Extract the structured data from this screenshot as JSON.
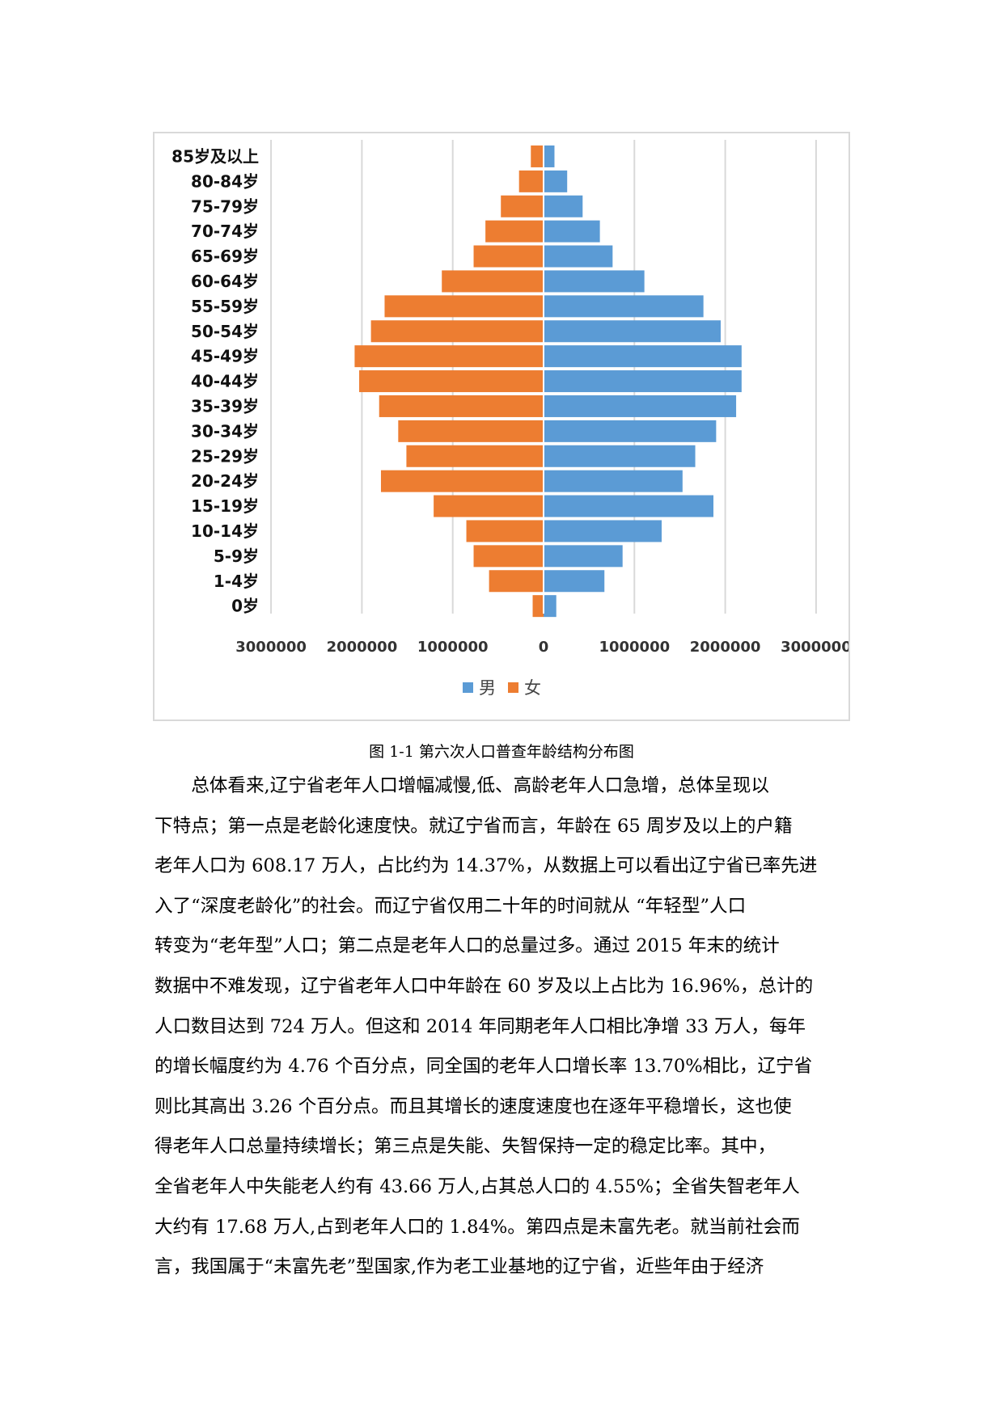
{
  "chart_data": {
    "type": "bar",
    "orientation": "horizontal",
    "title": "",
    "categories": [
      "85岁及以上",
      "80-84岁",
      "75-79岁",
      "70-74岁",
      "65-69岁",
      "60-64岁",
      "55-59岁",
      "50-54岁",
      "45-49岁",
      "40-44岁",
      "35-39岁",
      "30-34岁",
      "25-29岁",
      "20-24岁",
      "15-19岁",
      "10-14岁",
      "5-9岁",
      "1-4岁",
      "0岁"
    ],
    "series": [
      {
        "name": "男",
        "color": "#5b9bd5",
        "values": [
          120000,
          260000,
          430000,
          620000,
          760000,
          1110000,
          1760000,
          1950000,
          2180000,
          2180000,
          2120000,
          1900000,
          1670000,
          1530000,
          1870000,
          1300000,
          870000,
          670000,
          140000
        ]
      },
      {
        "name": "女",
        "color": "#ed7d31",
        "values": [
          140000,
          270000,
          470000,
          640000,
          770000,
          1120000,
          1750000,
          1900000,
          2080000,
          2030000,
          1810000,
          1600000,
          1510000,
          1790000,
          1210000,
          850000,
          770000,
          600000,
          120000
        ]
      }
    ],
    "x_ticks": [
      "3000000",
      "2000000",
      "1000000",
      "0",
      "1000000",
      "2000000",
      "3000000"
    ],
    "xlim": [
      -3000000,
      3000000
    ],
    "grid": true,
    "legend": "bottom-center"
  },
  "caption": "图 1-1  第六次人口普查年龄结构分布图",
  "paragraphs": [
    "总体看来,辽宁省老年人口增幅减慢,低、高龄老年人口急增，总体呈现以",
    "下特点；第一点是老龄化速度快。就辽宁省而言，年龄在 65 周岁及以上的户籍",
    "老年人口为 608.17 万人，占比约为 14.37%，从数据上可以看出辽宁省已率先进",
    "入了“深度老龄化”的社会。而辽宁省仅用二十年的时间就从 “年轻型”人口",
    "转变为“老年型”人口；第二点是老年人口的总量过多。通过 2015 年末的统计",
    "数据中不难发现，辽宁省老年人口中年龄在 60 岁及以上占比为 16.96%，总计的",
    "人口数目达到 724 万人。但这和 2014 年同期老年人口相比净增 33 万人，每年",
    "的增长幅度约为 4.76 个百分点，同全国的老年人口增长率 13.70%相比，辽宁省",
    "则比其高出 3.26 个百分点。而且其增长的速度速度也在逐年平稳增长，这也使",
    "得老年人口总量持续增长；第三点是失能、失智保持一定的稳定比率。其中，",
    "全省老年人中失能老人约有 43.66 万人,占其总人口的 4.55%；全省失智老年人",
    "大约有 17.68 万人,占到老年人口的 1.84%。第四点是未富先老。就当前社会而",
    "言，我国属于“未富先老”型国家,作为老工业基地的辽宁省，近些年由于经济"
  ]
}
